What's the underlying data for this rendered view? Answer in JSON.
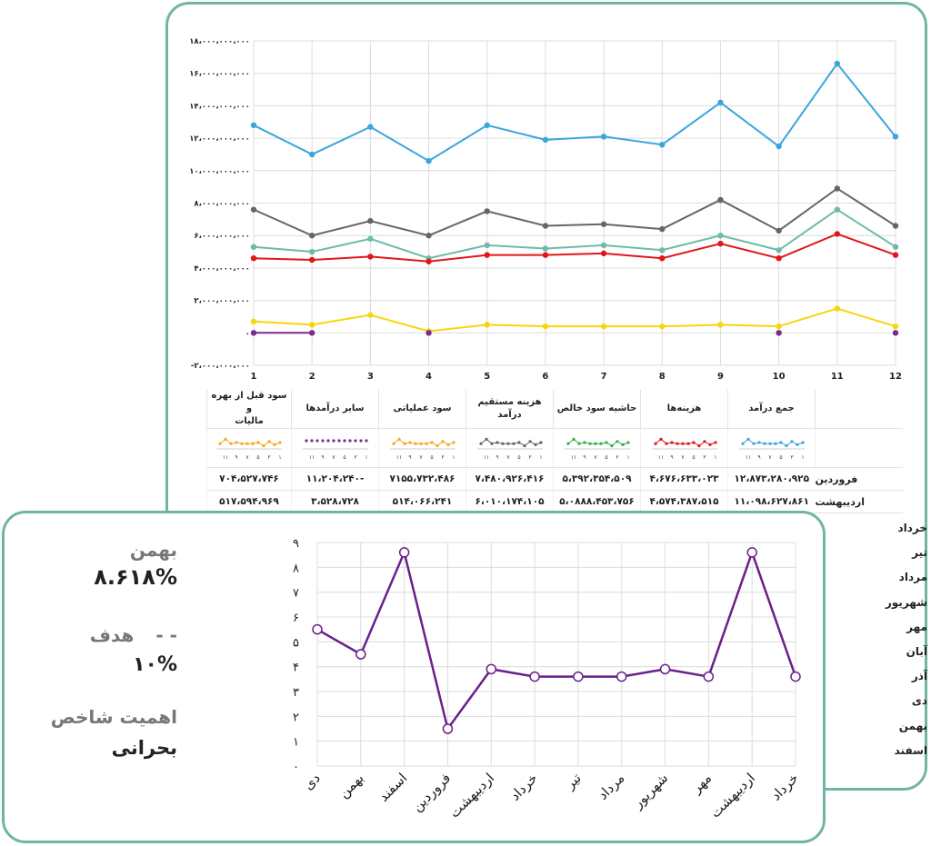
{
  "main_chart": {
    "y_ticks": [
      "18,000,000,000",
      "16,000,000,000",
      "14,000,000,000",
      "12,000,000,000",
      "10,000,000,000",
      "8,000,000,000",
      "6,000,000,000",
      "4,000,000,000",
      "2,000,000,000",
      "0",
      "-2,000,000,000"
    ],
    "y_ticks_display": [
      "۱۸،۰۰۰،۰۰۰،۰۰۰",
      "۱۶،۰۰۰،۰۰۰،۰۰۰",
      "۱۴،۰۰۰،۰۰۰،۰۰۰",
      "۱۲،۰۰۰،۰۰۰،۰۰۰",
      "۱۰،۰۰۰،۰۰۰،۰۰۰",
      "۸،۰۰۰،۰۰۰،۰۰۰",
      "۶،۰۰۰،۰۰۰،۰۰۰",
      "۴،۰۰۰،۰۰۰،۰۰۰",
      "۲،۰۰۰،۰۰۰،۰۰۰",
      "۰",
      "-۲،۰۰۰،۰۰۰،۰۰۰"
    ],
    "x_ticks": [
      "1",
      "2",
      "3",
      "4",
      "5",
      "6",
      "7",
      "8",
      "9",
      "10",
      "11",
      "12"
    ]
  },
  "chart_data": [
    {
      "type": "line",
      "x": [
        1,
        2,
        3,
        4,
        5,
        6,
        7,
        8,
        9,
        10,
        11,
        12
      ],
      "ylim": [
        -2000000000,
        18000000000
      ],
      "grid": true,
      "series": [
        {
          "color": "#3aa6dd",
          "values": [
            12800000000,
            11000000000,
            12700000000,
            10600000000,
            12800000000,
            11900000000,
            12100000000,
            11600000000,
            14200000000,
            11500000000,
            16600000000,
            12100000000
          ]
        },
        {
          "color": "#666666",
          "values": [
            7600000000,
            6000000000,
            6900000000,
            6000000000,
            7500000000,
            6600000000,
            6700000000,
            6400000000,
            8200000000,
            6300000000,
            8900000000,
            6600000000
          ]
        },
        {
          "color": "#6dbba8",
          "values": [
            5300000000,
            5000000000,
            5800000000,
            4600000000,
            5400000000,
            5200000000,
            5400000000,
            5100000000,
            6000000000,
            5100000000,
            7600000000,
            5300000000
          ]
        },
        {
          "color": "#e0161b",
          "values": [
            4600000000,
            4500000000,
            4700000000,
            4400000000,
            4800000000,
            4800000000,
            4900000000,
            4600000000,
            5500000000,
            4600000000,
            6100000000,
            4800000000
          ]
        },
        {
          "color": "#f5d70e",
          "values": [
            700000000,
            500000000,
            1100000000,
            100000000,
            500000000,
            400000000,
            400000000,
            400000000,
            500000000,
            400000000,
            1500000000,
            400000000
          ]
        },
        {
          "color": "#7b2a8f",
          "values": [
            0,
            0,
            null,
            0,
            null,
            null,
            null,
            null,
            null,
            0,
            null,
            0
          ]
        }
      ]
    },
    {
      "type": "line",
      "categories": [
        "دی",
        "بهمن",
        "اسفند",
        "فروردین",
        "اردیبهشت",
        "خرداد",
        "تیر",
        "مرداد",
        "شهریور",
        "مهر",
        "اردیبهشت",
        "خرداد"
      ],
      "values": [
        5.5,
        4.5,
        8.6,
        1.5,
        3.9,
        3.6,
        3.6,
        3.6,
        3.9,
        3.6,
        8.6,
        3.6
      ],
      "ylim": [
        0,
        9
      ],
      "y_ticks": [
        "0",
        "1",
        "2",
        "3",
        "4",
        "5",
        "6",
        "7",
        "8",
        "9"
      ],
      "y_ticks_display": [
        "۰",
        "۱",
        "۲",
        "۳",
        "۴",
        "۵",
        "۶",
        "۷",
        "۸",
        "۹"
      ],
      "color": "#6a1f8a",
      "grid": true
    }
  ],
  "table": {
    "headers": [
      "جمع درآمد",
      "هزینه‌ها",
      "حاشیه سود خالص",
      "هزینه مستقیم درآمد",
      "سود عملیاتی",
      "سایر درآمدها",
      "سود قبل از بهره و مالیات"
    ],
    "header_lines": [
      [
        "جمع درآمد"
      ],
      [
        "هزینه‌ها"
      ],
      [
        "حاشیه سود خالص"
      ],
      [
        "هزینه مستقیم",
        "درآمد"
      ],
      [
        "سود عملیاتی"
      ],
      [
        "سایر درآمدها"
      ],
      [
        "سود قبل از بهره و",
        "مالیات"
      ]
    ],
    "spark_colors": [
      "#3aa6dd",
      "#e0161b",
      "#2bb24c",
      "#666666",
      "#f5a623",
      "#7b2a8f",
      "#f5a623"
    ],
    "spark_ticks": [
      "۱",
      "۳",
      "۵",
      "۷",
      "۹",
      "۱۱"
    ],
    "rows": [
      {
        "month": "فروردین",
        "values": [
          "۱۲،۸۷۳،۲۸۰،۹۲۵",
          "۴،۶۷۶،۶۳۳،۰۲۳",
          "۵،۳۹۲،۳۵۴،۵۰۹",
          "۷،۴۸۰،۹۲۶،۴۱۶",
          "۷۱۵۵،۷۳۲،۴۸۶",
          "-۱۱،۲۰۴،۲۴۰",
          "۷۰۴،۵۲۷،۷۴۶"
        ]
      },
      {
        "month": "اردیبهشت",
        "values": [
          "۱۱،۰۹۸،۶۲۷،۸۶۱",
          "۴،۵۷۴،۳۸۷،۵۱۵",
          "۵،۰۸۸۸،۴۵۳،۷۵۶",
          "۶،۰۱۰،۱۷۴،۱۰۵",
          "۵۱۴،۰۶۶،۲۴۱",
          "۳،۵۲۸،۷۲۸",
          "۵۱۷،۵۹۴،۹۶۹"
        ]
      }
    ],
    "more_months": [
      "خرداد",
      "تیر",
      "مرداد",
      "شهریور",
      "مهر",
      "آبان",
      "آذر",
      "دی",
      "بهمن",
      "اسفند"
    ]
  },
  "kpi": {
    "month_label": "بهمن",
    "month_value": "۸.۶۱۸%",
    "target_label": "هدف",
    "target_dash": "- -",
    "target_value": "۱۰%",
    "importance_label": "اهمیت شاخص",
    "importance_value": "بحرانی"
  }
}
